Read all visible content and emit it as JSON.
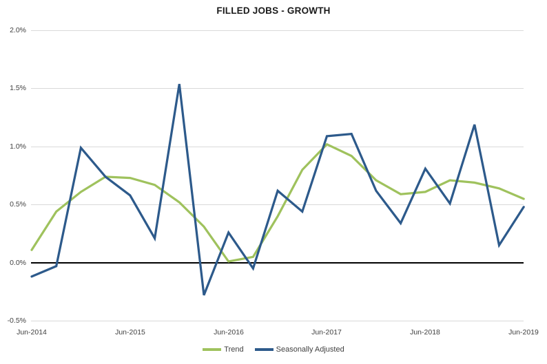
{
  "title": "FILLED JOBS - GROWTH",
  "colors": {
    "trend": "#9fc25d",
    "seasonally_adjusted": "#2d5a8b",
    "gridline": "#d9d9d9",
    "zero_axis": "#000000",
    "tick_label": "#404040",
    "background": "#ffffff"
  },
  "y_axis": {
    "tick_labels": [
      "2.0%",
      "1.5%",
      "1.0%",
      "0.5%",
      "0.0%",
      "-0.5%"
    ],
    "min": -0.5,
    "max": 2.0,
    "step": 0.5,
    "unit": "%"
  },
  "x_axis": {
    "tick_labels": [
      "Jun-2014",
      "Jun-2015",
      "Jun-2016",
      "Jun-2017",
      "Jun-2018",
      "Jun-2019"
    ]
  },
  "legend": {
    "items": [
      {
        "label": "Trend",
        "color": "#9fc25d"
      },
      {
        "label": "Seasonally Adjusted",
        "color": "#2d5a8b"
      }
    ],
    "position": "bottom"
  },
  "chart_data": {
    "type": "line",
    "title": "FILLED JOBS - GROWTH",
    "xlabel": "",
    "ylabel": "",
    "ylim": [
      -0.5,
      2.0
    ],
    "grid": true,
    "legend_position": "bottom",
    "units": "percent",
    "x": [
      "Jun-2014",
      "Sep-2014",
      "Dec-2014",
      "Mar-2015",
      "Jun-2015",
      "Sep-2015",
      "Dec-2015",
      "Mar-2016",
      "Jun-2016",
      "Sep-2016",
      "Dec-2016",
      "Mar-2017",
      "Jun-2017",
      "Sep-2017",
      "Dec-2017",
      "Mar-2018",
      "Jun-2018",
      "Sep-2018",
      "Dec-2018",
      "Mar-2019",
      "Jun-2019"
    ],
    "series": [
      {
        "name": "Trend",
        "color": "#9fc25d",
        "values": [
          0.11,
          0.44,
          0.61,
          0.74,
          0.73,
          0.67,
          0.52,
          0.31,
          0.01,
          0.05,
          0.4,
          0.8,
          1.02,
          0.92,
          0.71,
          0.59,
          0.61,
          0.71,
          0.69,
          0.64,
          0.55
        ]
      },
      {
        "name": "Seasonally Adjusted",
        "color": "#2d5a8b",
        "values": [
          -0.12,
          -0.03,
          0.99,
          0.74,
          0.58,
          0.21,
          1.54,
          -0.28,
          0.26,
          -0.05,
          0.62,
          0.44,
          1.09,
          1.11,
          0.62,
          0.34,
          0.81,
          0.51,
          1.19,
          0.15,
          0.48
        ]
      }
    ]
  }
}
